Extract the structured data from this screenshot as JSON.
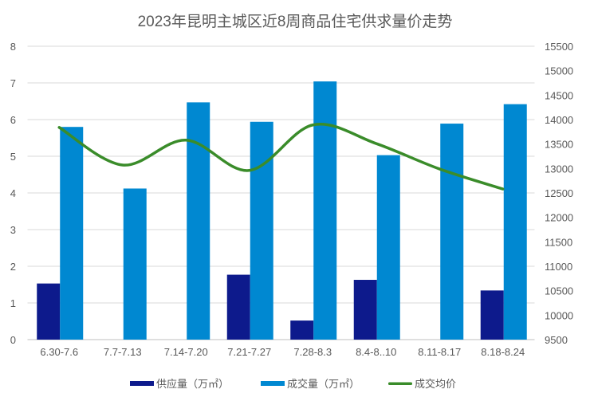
{
  "chart_data": {
    "type": "bar+line",
    "title": "2023年昆明主城区近8周商品住宅供求量价走势",
    "categories": [
      "6.30-7.6",
      "7.7-7.13",
      "7.14-7.20",
      "7.21-7.27",
      "7.28-8.3",
      "8.4-8..10",
      "8.11-8.17",
      "8.18-8.24"
    ],
    "series": [
      {
        "name": "供应量（万㎡）",
        "type": "bar",
        "axis": "left",
        "color": "#0d1a8c",
        "values": [
          1.53,
          0,
          0,
          1.77,
          0.52,
          1.63,
          0,
          1.34
        ]
      },
      {
        "name": "成交量（万㎡）",
        "type": "bar",
        "axis": "left",
        "color": "#0088d1",
        "values": [
          5.8,
          4.12,
          6.47,
          5.94,
          7.04,
          5.03,
          5.89,
          6.42
        ]
      },
      {
        "name": "成交均价",
        "type": "line",
        "axis": "right",
        "color": "#3a8c2a",
        "values": [
          13840,
          13070,
          13580,
          12960,
          13890,
          13510,
          12990,
          12580
        ]
      }
    ],
    "ylim_left": [
      0,
      8
    ],
    "yticks_left": [
      "0",
      "1",
      "2",
      "3",
      "4",
      "5",
      "6",
      "7",
      "8"
    ],
    "ylim_right": [
      9500,
      15500
    ],
    "yticks_right": [
      "9500",
      "10000",
      "10500",
      "11000",
      "11500",
      "12000",
      "12500",
      "13000",
      "13500",
      "14000",
      "14500",
      "15000",
      "15500"
    ],
    "grid": true,
    "legend": "bottom"
  }
}
